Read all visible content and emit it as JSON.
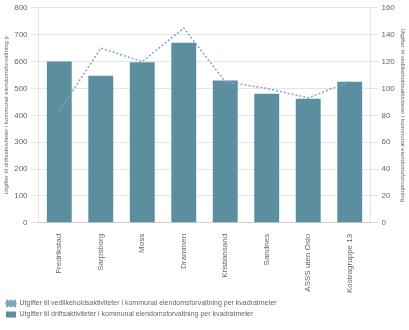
{
  "chart_data": {
    "type": "bar",
    "categories": [
      "Fredrikstad",
      "Sarpsborg",
      "Moss",
      "Drammen",
      "Kristiansand",
      "Sandnes",
      "ASSS uten Oslo",
      "Kostragruppe 13"
    ],
    "series": [
      {
        "name": "Utgifter til driftsaktiviteter i kommunal eiendomsforvaltning per kvadratmeter",
        "type": "bar",
        "color": "#5b8fa0",
        "values": [
          600,
          547,
          597,
          670,
          530,
          480,
          462,
          525
        ]
      },
      {
        "name": "Utgifter til vedlikeholdsaktiviteter i kommunal eiendomsforvaltning per kvadratmeter",
        "type": "line",
        "axis": "y2",
        "color": "#7aaabb",
        "line_style": "dotted",
        "values": [
          83,
          130,
          120,
          145,
          105,
          100,
          93,
          105
        ]
      }
    ],
    "y_label": "Utgifter til driftsaktiviteter i kommunal eiendomsforvaltning p",
    "y2_label": "Utgifter til vedlikeholdsaktiviteter i kommunal eiendomsforvaltning",
    "ylim": [
      0,
      800
    ],
    "yticks": [
      0,
      100,
      200,
      300,
      400,
      500,
      600,
      700,
      800
    ],
    "y2lim": [
      0,
      160
    ],
    "y2ticks": [
      0,
      20,
      40,
      60,
      80,
      100,
      120,
      140,
      160
    ],
    "grid": true,
    "legend": "bottom"
  }
}
